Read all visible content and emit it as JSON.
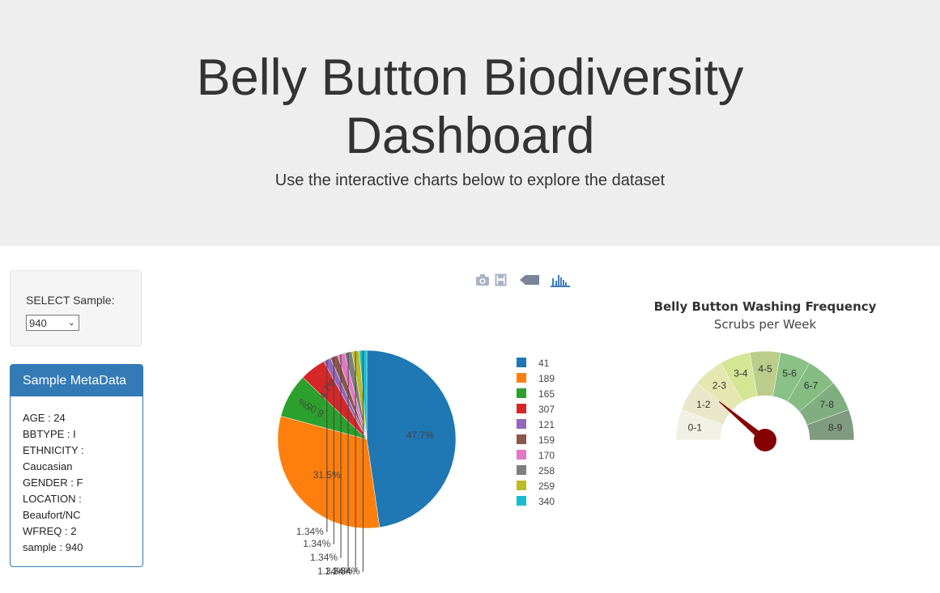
{
  "header": {
    "title_line1": "Belly Button Biodiversity",
    "title_line2": "Dashboard",
    "subtitle": "Use the interactive charts below to explore the dataset"
  },
  "selector": {
    "label": "SELECT Sample:",
    "selected": "940"
  },
  "metadata_panel": {
    "heading": "Sample MetaData",
    "lines": [
      "AGE : 24",
      "BBTYPE : I",
      "ETHNICITY :",
      "Caucasian",
      "GENDER : F",
      "LOCATION :",
      "Beaufort/NC",
      "WFREQ : 2",
      "sample : 940"
    ]
  },
  "modebar": {
    "icons": [
      "camera-icon",
      "save-icon",
      "tag-icon",
      "plotly-logo-icon"
    ]
  },
  "colors": {
    "panel_blue": "#337ab7",
    "needle": "#850000"
  },
  "chart_data": [
    {
      "type": "pie",
      "labels": [
        "41",
        "189",
        "165",
        "307",
        "121",
        "159",
        "170",
        "258",
        "259",
        "340"
      ],
      "values": [
        47.7,
        31.5,
        8.05,
        4.7,
        1.34,
        1.34,
        1.34,
        1.34,
        1.34,
        1.34
      ],
      "slice_text": [
        "47.7%",
        "31.5%",
        "8.05%",
        "4.7%",
        "1.34%",
        "1.34%",
        "1.34%",
        "1.34%",
        "1.34%",
        "1.34%"
      ],
      "colors": [
        "#1f77b4",
        "#ff7f0e",
        "#2ca02c",
        "#d62728",
        "#9467bd",
        "#8c564b",
        "#e377c2",
        "#7f7f7f",
        "#bcbd22",
        "#17becf"
      ],
      "legend": "right"
    },
    {
      "type": "gauge",
      "title": "Belly Button Washing Frequency",
      "subtitle": "Scrubs per Week",
      "sections": [
        "0-1",
        "1-2",
        "2-3",
        "3-4",
        "4-5",
        "5-6",
        "6-7",
        "7-8",
        "8-9"
      ],
      "section_colors": [
        "#f1f0e5",
        "#e9e7c9",
        "#e4e8b0",
        "#d4e596",
        "#bccc8b",
        "#8ac186",
        "#84bc81",
        "#80ae80",
        "#7f9b7f"
      ],
      "range": [
        0,
        9
      ],
      "value": 2
    }
  ]
}
